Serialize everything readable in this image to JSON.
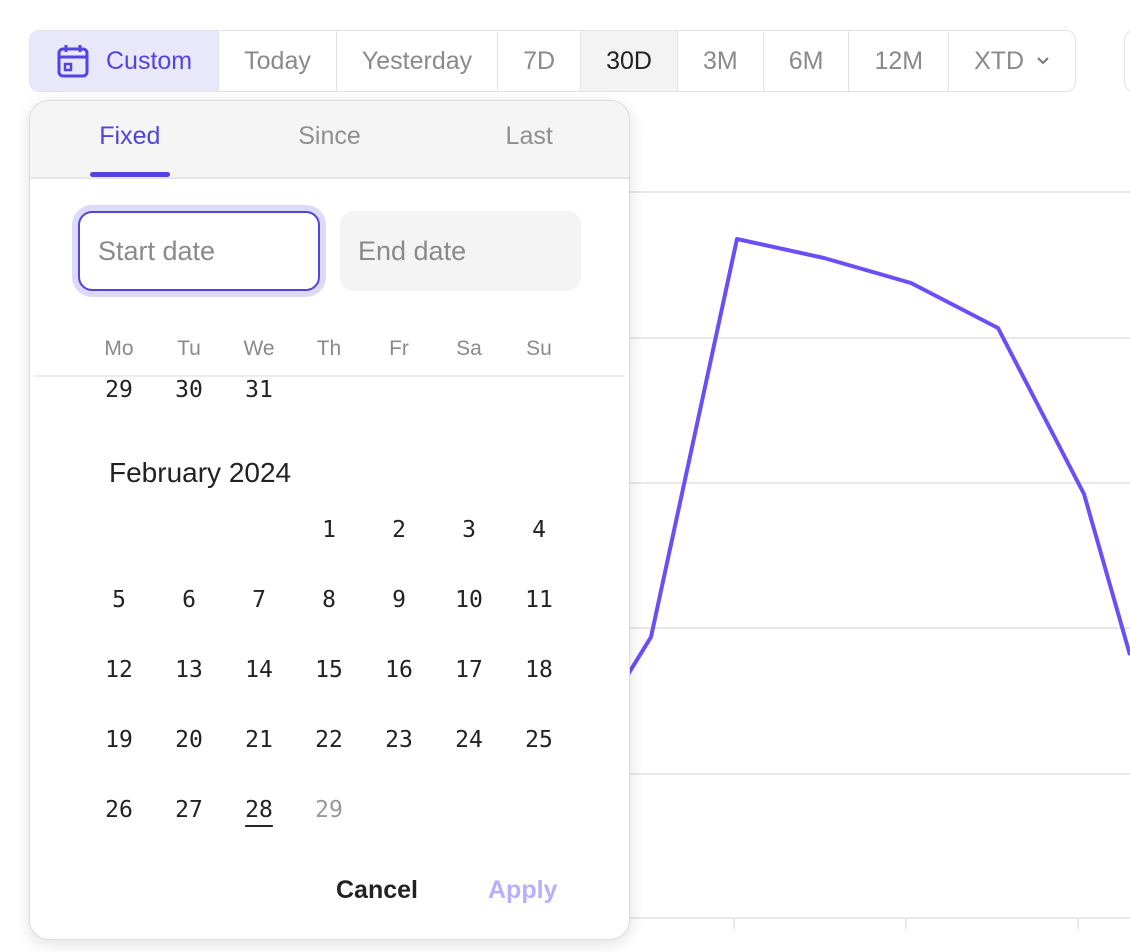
{
  "range_bar": {
    "custom": {
      "label": "Custom",
      "icon": "calendar-icon"
    },
    "options": [
      "Today",
      "Yesterday",
      "7D",
      "30D",
      "3M",
      "6M",
      "12M",
      "XTD"
    ],
    "active": "30D",
    "xtd_icon": "chevron-down-icon"
  },
  "colors": {
    "accent": "#5443e0",
    "line": "#6b4ff6",
    "apply_disabled": "#b7aefc"
  },
  "picker": {
    "tabs": [
      "Fixed",
      "Since",
      "Last"
    ],
    "active_tab": "Fixed",
    "start_placeholder": "Start date",
    "end_placeholder": "End date",
    "weekdays": [
      "Mo",
      "Tu",
      "We",
      "Th",
      "Fr",
      "Sa",
      "Su"
    ],
    "prev_month_tail": [
      "29",
      "30",
      "31"
    ],
    "month_title": "February 2024",
    "weeks": [
      [
        "",
        "",
        "",
        "1",
        "2",
        "3",
        "4"
      ],
      [
        "5",
        "6",
        "7",
        "8",
        "9",
        "10",
        "11"
      ],
      [
        "12",
        "13",
        "14",
        "15",
        "16",
        "17",
        "18"
      ],
      [
        "19",
        "20",
        "21",
        "22",
        "23",
        "24",
        "25"
      ],
      [
        "26",
        "27",
        "28",
        "29",
        "",
        "",
        " "
      ]
    ],
    "today": "28",
    "disabled_day": "29",
    "cancel": "Cancel",
    "apply": "Apply"
  }
}
